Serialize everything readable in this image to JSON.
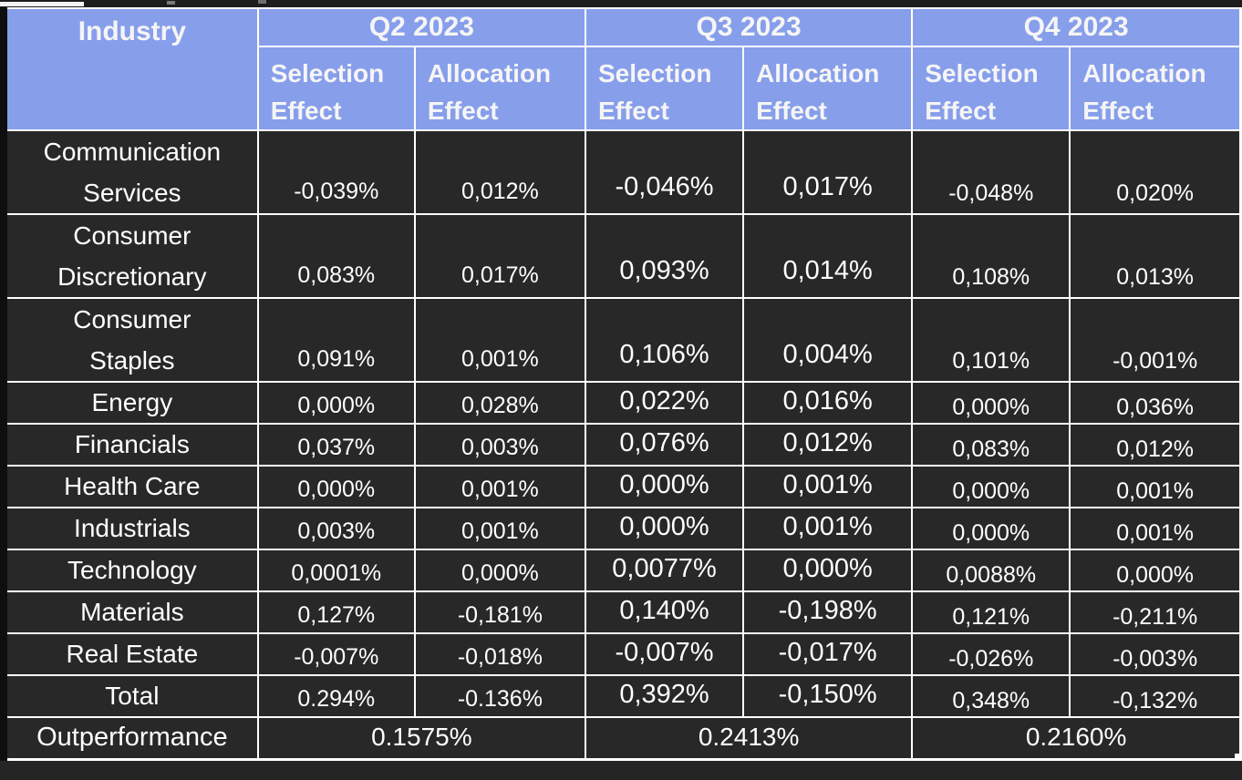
{
  "colors": {
    "header_bg": "#879EEB",
    "header_text": "#F5F5F5",
    "cell_bg": "#282828",
    "cell_text": "#FFFFFF",
    "grid_line": "#FFFFFF",
    "page_bg": "#252525",
    "outer_left_border": "#0E0E0E"
  },
  "chart_data": {
    "type": "table",
    "header": {
      "industry_label": "Industry",
      "quarters": [
        "Q2 2023",
        "Q3 2023",
        "Q4 2023"
      ],
      "effect_cols": [
        "Selection\nEffect",
        "Allocation\nEffect",
        "Selection\nEffect",
        "Allocation\nEffect",
        "Selection\nEffect",
        "Allocation\nEffect"
      ]
    },
    "rows": [
      {
        "industry": "Communication\nServices",
        "two_line": true,
        "values": [
          "-0,039%",
          "0,012%",
          "-0,046%",
          "0,017%",
          "-0,048%",
          "0,020%"
        ]
      },
      {
        "industry": "Consumer\nDiscretionary",
        "two_line": true,
        "values": [
          "0,083%",
          "0,017%",
          "0,093%",
          "0,014%",
          "0,108%",
          "0,013%"
        ]
      },
      {
        "industry": "Consumer\nStaples",
        "two_line": true,
        "values": [
          "0,091%",
          "0,001%",
          "0,106%",
          "0,004%",
          "0,101%",
          "-0,001%"
        ]
      },
      {
        "industry": "Energy",
        "two_line": false,
        "values": [
          "0,000%",
          "0,028%",
          "0,022%",
          "0,016%",
          "0,000%",
          "0,036%"
        ]
      },
      {
        "industry": "Financials",
        "two_line": false,
        "values": [
          "0,037%",
          "0,003%",
          "0,076%",
          "0,012%",
          "0,083%",
          "0,012%"
        ]
      },
      {
        "industry": "Health Care",
        "two_line": false,
        "values": [
          "0,000%",
          "0,001%",
          "0,000%",
          "0,001%",
          "0,000%",
          "0,001%"
        ]
      },
      {
        "industry": "Industrials",
        "two_line": false,
        "values": [
          "0,003%",
          "0,001%",
          "0,000%",
          "0,001%",
          "0,000%",
          "0,001%"
        ]
      },
      {
        "industry": "Technology",
        "two_line": false,
        "values": [
          "0,0001%",
          "0,000%",
          "0,0077%",
          "0,000%",
          "0,0088%",
          "0,000%"
        ]
      },
      {
        "industry": "Materials",
        "two_line": false,
        "values": [
          "0,127%",
          "-0,181%",
          "0,140%",
          "-0,198%",
          "0,121%",
          "-0,211%"
        ]
      },
      {
        "industry": "Real Estate",
        "two_line": false,
        "values": [
          "-0,007%",
          "-0,018%",
          "-0,007%",
          "-0,017%",
          "-0,026%",
          "-0,003%"
        ]
      },
      {
        "industry": "Total",
        "two_line": false,
        "values": [
          "0.294%",
          "-0.136%",
          "0,392%",
          "-0,150%",
          "0,348%",
          "-0,132%"
        ]
      }
    ],
    "outperformance": {
      "label": "Outperformance",
      "values": [
        "0.1575%",
        "0.2413%",
        "0.2160%"
      ]
    }
  }
}
